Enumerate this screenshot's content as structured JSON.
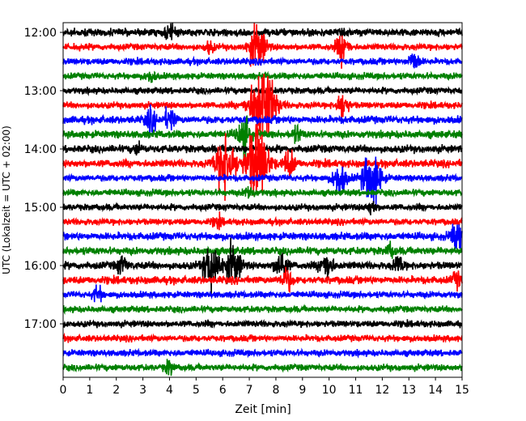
{
  "chart_data": {
    "type": "line",
    "title": "",
    "xlabel": "Zeit  [min]",
    "ylabel": "UTC (Lokalzeit = UTC + 02:00)",
    "xlim": [
      0,
      15
    ],
    "x_ticks": [
      "0",
      "1",
      "2",
      "3",
      "4",
      "5",
      "6",
      "7",
      "8",
      "9",
      "10",
      "11",
      "12",
      "13",
      "14",
      "15"
    ],
    "y_ticks": [
      "12:00",
      "13:00",
      "14:00",
      "15:00",
      "16:00",
      "17:00"
    ],
    "row_interval_min": 15,
    "start_time": "12:00",
    "trace_colors": [
      "#000000",
      "#ff0000",
      "#0000ff",
      "#008000"
    ],
    "rows": [
      {
        "time": "12:00",
        "color": "#000000",
        "amplitude": 0.35,
        "bursts": [
          {
            "x": 4.0,
            "amp": 0.6
          }
        ]
      },
      {
        "time": "12:15",
        "color": "#ff0000",
        "amplitude": 0.3,
        "bursts": [
          {
            "x": 7.3,
            "amp": 2.2
          },
          {
            "x": 10.5,
            "amp": 1.3
          },
          {
            "x": 5.5,
            "amp": 0.5
          }
        ]
      },
      {
        "time": "12:30",
        "color": "#0000ff",
        "amplitude": 0.3,
        "bursts": [
          {
            "x": 13.2,
            "amp": 0.9
          }
        ]
      },
      {
        "time": "12:45",
        "color": "#008000",
        "amplitude": 0.3,
        "bursts": [
          {
            "x": 3.3,
            "amp": 0.5
          }
        ]
      },
      {
        "time": "13:00",
        "color": "#000000",
        "amplitude": 0.3,
        "bursts": []
      },
      {
        "time": "13:15",
        "color": "#ff0000",
        "amplitude": 0.3,
        "bursts": [
          {
            "x": 7.5,
            "amp": 4.0
          },
          {
            "x": 10.5,
            "amp": 1.2
          }
        ]
      },
      {
        "time": "13:30",
        "color": "#0000ff",
        "amplitude": 0.35,
        "bursts": [
          {
            "x": 3.3,
            "amp": 1.0
          },
          {
            "x": 4.0,
            "amp": 1.0
          }
        ]
      },
      {
        "time": "13:45",
        "color": "#008000",
        "amplitude": 0.35,
        "bursts": [
          {
            "x": 6.8,
            "amp": 1.6
          },
          {
            "x": 8.8,
            "amp": 0.7
          }
        ]
      },
      {
        "time": "14:00",
        "color": "#000000",
        "amplitude": 0.35,
        "bursts": [
          {
            "x": 2.8,
            "amp": 0.5
          }
        ]
      },
      {
        "time": "14:15",
        "color": "#ff0000",
        "amplitude": 0.35,
        "bursts": [
          {
            "x": 7.3,
            "amp": 3.5
          },
          {
            "x": 6.1,
            "amp": 2.8
          },
          {
            "x": 8.5,
            "amp": 1.2
          }
        ]
      },
      {
        "time": "14:30",
        "color": "#0000ff",
        "amplitude": 0.3,
        "bursts": [
          {
            "x": 11.6,
            "amp": 2.6
          },
          {
            "x": 10.4,
            "amp": 1.5
          }
        ]
      },
      {
        "time": "14:45",
        "color": "#008000",
        "amplitude": 0.3,
        "bursts": [
          {
            "x": 7.0,
            "amp": 0.6
          }
        ]
      },
      {
        "time": "15:00",
        "color": "#000000",
        "amplitude": 0.3,
        "bursts": [
          {
            "x": 11.6,
            "amp": 0.6
          }
        ]
      },
      {
        "time": "15:15",
        "color": "#ff0000",
        "amplitude": 0.3,
        "bursts": [
          {
            "x": 5.8,
            "amp": 0.5
          }
        ]
      },
      {
        "time": "15:30",
        "color": "#0000ff",
        "amplitude": 0.35,
        "bursts": [
          {
            "x": 14.8,
            "amp": 1.2
          }
        ]
      },
      {
        "time": "15:45",
        "color": "#008000",
        "amplitude": 0.35,
        "bursts": [
          {
            "x": 12.3,
            "amp": 0.6
          }
        ]
      },
      {
        "time": "16:00",
        "color": "#000000",
        "amplitude": 0.35,
        "bursts": [
          {
            "x": 5.6,
            "amp": 2.3
          },
          {
            "x": 6.4,
            "amp": 1.9
          },
          {
            "x": 8.2,
            "amp": 1.3
          },
          {
            "x": 9.9,
            "amp": 1.3
          },
          {
            "x": 12.6,
            "amp": 0.8
          },
          {
            "x": 2.2,
            "amp": 0.8
          }
        ]
      },
      {
        "time": "16:15",
        "color": "#ff0000",
        "amplitude": 0.35,
        "bursts": [
          {
            "x": 8.4,
            "amp": 1.0
          },
          {
            "x": 14.8,
            "amp": 0.6
          }
        ]
      },
      {
        "time": "16:30",
        "color": "#0000ff",
        "amplitude": 0.3,
        "bursts": [
          {
            "x": 1.3,
            "amp": 0.7
          }
        ]
      },
      {
        "time": "16:45",
        "color": "#008000",
        "amplitude": 0.3,
        "bursts": []
      },
      {
        "time": "17:00",
        "color": "#000000",
        "amplitude": 0.3,
        "bursts": []
      },
      {
        "time": "17:15",
        "color": "#ff0000",
        "amplitude": 0.3,
        "bursts": []
      },
      {
        "time": "17:30",
        "color": "#0000ff",
        "amplitude": 0.3,
        "bursts": []
      },
      {
        "time": "17:45",
        "color": "#008000",
        "amplitude": 0.3,
        "bursts": [
          {
            "x": 4.0,
            "amp": 0.6
          }
        ]
      }
    ]
  }
}
